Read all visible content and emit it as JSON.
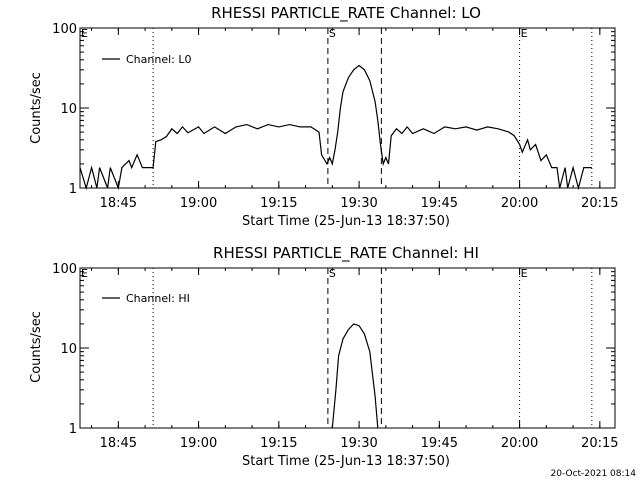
{
  "footer": {
    "timestamp": "20-Oct-2021 08:14"
  },
  "chart_data": [
    {
      "type": "line",
      "title": "RHESSI PARTICLE_RATE Channel: LO",
      "xlabel": "Start Time (25-Jun-13 18:37:50)",
      "ylabel": "Counts/sec",
      "y_scale": "log",
      "xlim": [
        "18:37:50",
        "20:17:50"
      ],
      "ylim": [
        1,
        100
      ],
      "x_ticks": [
        "18:45",
        "19:00",
        "19:15",
        "19:30",
        "19:45",
        "20:00",
        "20:15"
      ],
      "y_ticks": [
        "1",
        "10",
        "100"
      ],
      "legend": {
        "position": "top-left",
        "entries": [
          "Channel: L0"
        ]
      },
      "markers": [
        {
          "label": "E",
          "time": "18:37:50",
          "style": "dotted"
        },
        {
          "label": "",
          "time": "18:51:30",
          "style": "dotted"
        },
        {
          "label": "S",
          "time": "19:24:10",
          "style": "dashed"
        },
        {
          "label": "",
          "time": "19:34:10",
          "style": "dashed"
        },
        {
          "label": "E",
          "time": "20:00:00",
          "style": "dotted"
        },
        {
          "label": "",
          "time": "20:13:30",
          "style": "dotted"
        }
      ],
      "series": [
        {
          "name": "Channel: L0",
          "points": [
            [
              "18:37:50",
              1.8
            ],
            [
              "18:39:00",
              1.0
            ],
            [
              "18:40:00",
              1.8
            ],
            [
              "18:41:00",
              1.0
            ],
            [
              "18:41:30",
              1.8
            ],
            [
              "18:43:00",
              1.0
            ],
            [
              "18:43:30",
              1.8
            ],
            [
              "18:45:00",
              1.0
            ],
            [
              "18:45:40",
              1.8
            ],
            [
              "18:47:00",
              2.2
            ],
            [
              "18:47:30",
              1.8
            ],
            [
              "18:48:30",
              2.6
            ],
            [
              "18:49:30",
              1.8
            ],
            [
              "18:51:30",
              1.8
            ],
            [
              "18:52:00",
              3.8
            ],
            [
              "18:53:00",
              4.0
            ],
            [
              "18:54:00",
              4.4
            ],
            [
              "18:55:00",
              5.5
            ],
            [
              "18:56:00",
              4.8
            ],
            [
              "18:57:00",
              5.8
            ],
            [
              "18:58:00",
              4.9
            ],
            [
              "19:00:00",
              5.8
            ],
            [
              "19:01:00",
              4.8
            ],
            [
              "19:03:00",
              5.8
            ],
            [
              "19:05:00",
              4.8
            ],
            [
              "19:07:00",
              5.8
            ],
            [
              "19:09:00",
              6.2
            ],
            [
              "19:11:00",
              5.5
            ],
            [
              "19:13:00",
              6.2
            ],
            [
              "19:15:00",
              5.8
            ],
            [
              "19:17:00",
              6.2
            ],
            [
              "19:19:00",
              5.8
            ],
            [
              "19:21:00",
              5.8
            ],
            [
              "19:22:30",
              5.0
            ],
            [
              "19:23:00",
              2.6
            ],
            [
              "19:24:00",
              2.0
            ],
            [
              "19:24:30",
              2.4
            ],
            [
              "19:25:00",
              2.0
            ],
            [
              "19:25:30",
              3.0
            ],
            [
              "19:26:00",
              5.0
            ],
            [
              "19:26:30",
              10.0
            ],
            [
              "19:27:00",
              16.0
            ],
            [
              "19:28:00",
              24.0
            ],
            [
              "19:29:00",
              30.0
            ],
            [
              "19:30:00",
              34.0
            ],
            [
              "19:31:00",
              30.0
            ],
            [
              "19:32:00",
              22.0
            ],
            [
              "19:33:00",
              12.0
            ],
            [
              "19:33:30",
              7.0
            ],
            [
              "19:34:00",
              3.5
            ],
            [
              "19:34:30",
              2.0
            ],
            [
              "19:35:00",
              2.4
            ],
            [
              "19:35:30",
              2.0
            ],
            [
              "19:36:00",
              4.5
            ],
            [
              "19:37:00",
              5.5
            ],
            [
              "19:38:00",
              4.8
            ],
            [
              "19:39:00",
              5.8
            ],
            [
              "19:40:00",
              4.8
            ],
            [
              "19:42:00",
              5.5
            ],
            [
              "19:44:00",
              4.8
            ],
            [
              "19:46:00",
              5.8
            ],
            [
              "19:48:00",
              5.5
            ],
            [
              "19:50:00",
              5.8
            ],
            [
              "19:52:00",
              5.3
            ],
            [
              "19:54:00",
              5.8
            ],
            [
              "19:56:00",
              5.5
            ],
            [
              "19:58:00",
              5.0
            ],
            [
              "19:59:00",
              4.5
            ],
            [
              "20:00:00",
              3.5
            ],
            [
              "20:00:30",
              2.8
            ],
            [
              "20:01:30",
              4.0
            ],
            [
              "20:02:00",
              3.0
            ],
            [
              "20:03:00",
              3.5
            ],
            [
              "20:04:00",
              2.2
            ],
            [
              "20:05:00",
              2.6
            ],
            [
              "20:06:00",
              1.8
            ],
            [
              "20:07:00",
              1.8
            ],
            [
              "20:07:30",
              1.0
            ],
            [
              "20:08:30",
              1.8
            ],
            [
              "20:09:00",
              1.0
            ],
            [
              "20:10:00",
              1.8
            ],
            [
              "20:11:00",
              1.0
            ],
            [
              "20:12:00",
              1.8
            ],
            [
              "20:13:30",
              1.8
            ]
          ]
        }
      ]
    },
    {
      "type": "line",
      "title": "RHESSI PARTICLE_RATE Channel: HI",
      "xlabel": "Start Time (25-Jun-13 18:37:50)",
      "ylabel": "Counts/sec",
      "y_scale": "log",
      "xlim": [
        "18:37:50",
        "20:17:50"
      ],
      "ylim": [
        1,
        100
      ],
      "x_ticks": [
        "18:45",
        "19:00",
        "19:15",
        "19:30",
        "19:45",
        "20:00",
        "20:15"
      ],
      "y_ticks": [
        "1",
        "10",
        "100"
      ],
      "legend": {
        "position": "top-left",
        "entries": [
          "Channel: HI"
        ]
      },
      "markers": [
        {
          "label": "E",
          "time": "18:37:50",
          "style": "dotted"
        },
        {
          "label": "",
          "time": "18:51:30",
          "style": "dotted"
        },
        {
          "label": "S",
          "time": "19:24:10",
          "style": "dashed"
        },
        {
          "label": "",
          "time": "19:34:10",
          "style": "dashed"
        },
        {
          "label": "E",
          "time": "20:00:00",
          "style": "dotted"
        },
        {
          "label": "",
          "time": "20:13:30",
          "style": "dotted"
        }
      ],
      "series": [
        {
          "name": "Channel: HI",
          "points": [
            [
              "19:25:00",
              1.0
            ],
            [
              "19:25:40",
              3.0
            ],
            [
              "19:26:10",
              8.0
            ],
            [
              "19:27:00",
              13.0
            ],
            [
              "19:28:00",
              17.0
            ],
            [
              "19:29:00",
              20.0
            ],
            [
              "19:30:00",
              19.0
            ],
            [
              "19:31:00",
              15.0
            ],
            [
              "19:32:00",
              9.0
            ],
            [
              "19:33:00",
              2.5
            ],
            [
              "19:33:30",
              1.0
            ]
          ]
        }
      ]
    }
  ]
}
